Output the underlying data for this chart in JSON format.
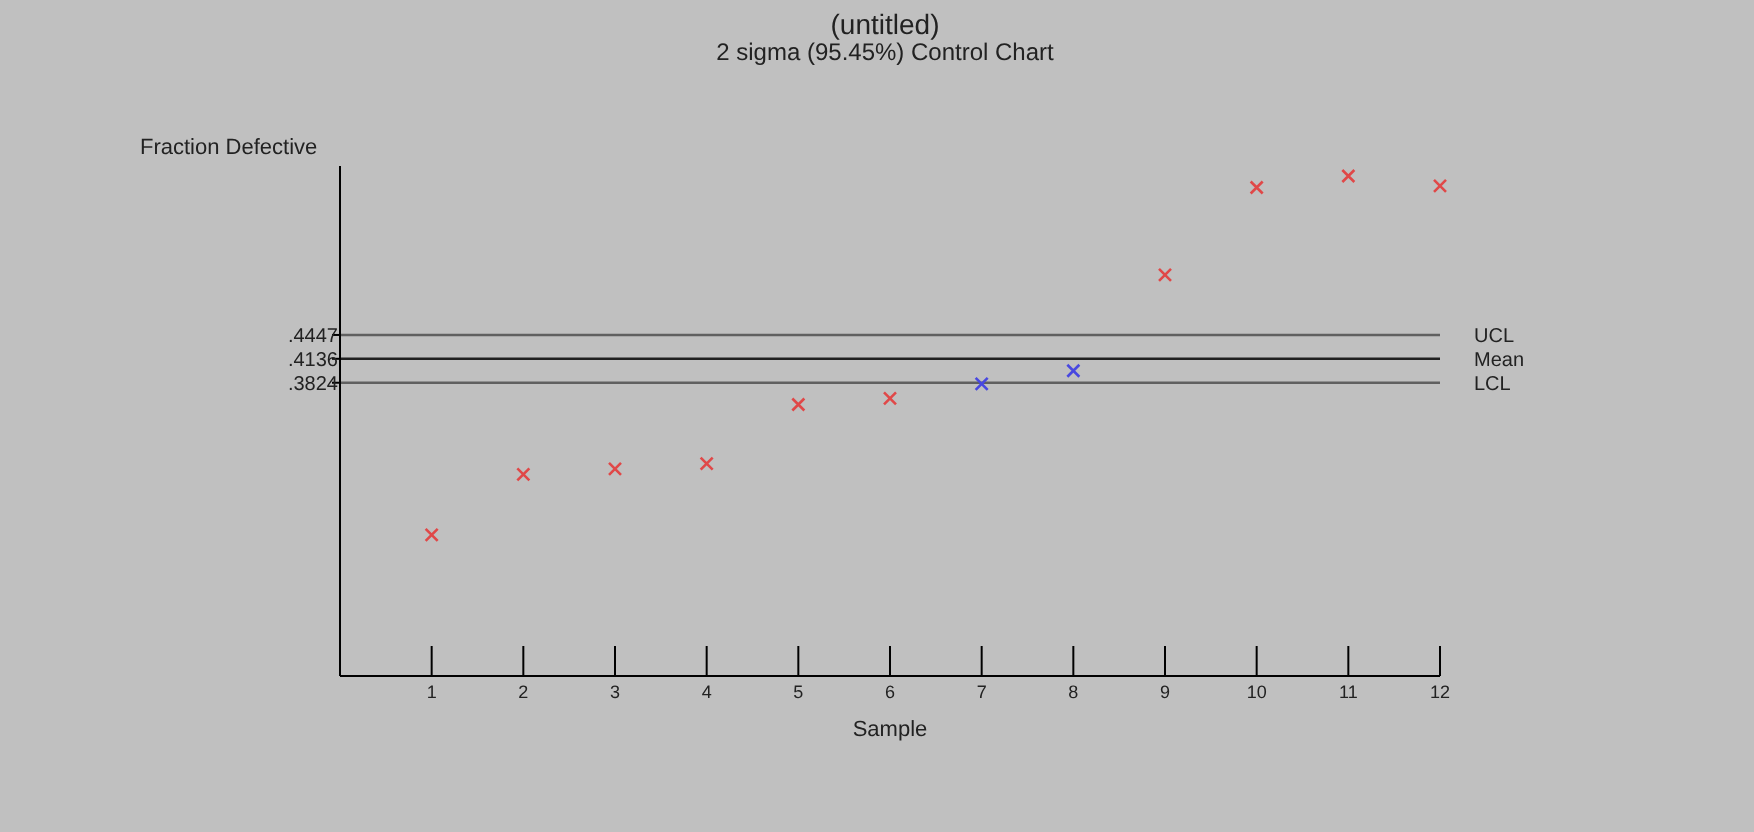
{
  "chart_data": {
    "type": "scatter",
    "title": "(untitled)",
    "subtitle": "2 sigma (95.45%) Control Chart",
    "xlabel": "Sample",
    "ylabel": "Fraction Defective",
    "x": [
      1,
      2,
      3,
      4,
      5,
      6,
      7,
      8,
      9,
      10,
      11,
      12
    ],
    "values": [
      0.184,
      0.263,
      0.27,
      0.277,
      0.354,
      0.362,
      0.381,
      0.398,
      0.523,
      0.637,
      0.652,
      0.639
    ],
    "colors": [
      "#e04848",
      "#e04848",
      "#e04848",
      "#e04848",
      "#e04848",
      "#e04848",
      "#4848e0",
      "#4848e0",
      "#e04848",
      "#e04848",
      "#e04848",
      "#e04848"
    ],
    "marker": "cross",
    "xlim": [
      0,
      12
    ],
    "xticks": [
      1,
      2,
      3,
      4,
      5,
      6,
      7,
      8,
      9,
      10,
      11,
      12
    ],
    "ylim": [
      0,
      0.665
    ],
    "yticks": [
      {
        "value": 0.3824,
        "label": ".3824"
      },
      {
        "value": 0.4136,
        "label": ".4136"
      },
      {
        "value": 0.4447,
        "label": ".4447"
      }
    ],
    "ref_lines": [
      {
        "axis": "y",
        "value": 0.4447,
        "label": "UCL",
        "color": "#606060"
      },
      {
        "axis": "y",
        "value": 0.4136,
        "label": "Mean",
        "color": "#202020"
      },
      {
        "axis": "y",
        "value": 0.3824,
        "label": "LCL",
        "color": "#606060"
      }
    ]
  }
}
